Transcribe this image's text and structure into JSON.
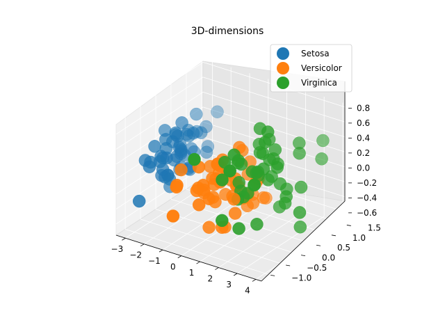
{
  "chart_data": {
    "type": "scatter",
    "title": "3D-dimensions",
    "xlabel": "",
    "ylabel": "",
    "zlabel": "",
    "x_ticks": [
      "−3",
      "−2",
      "−1",
      "0",
      "1",
      "2",
      "3",
      "4"
    ],
    "y_ticks": [
      "−1.0",
      "−0.5",
      "0.0",
      "0.5",
      "1.0",
      "1.5"
    ],
    "z_ticks": [
      "−0.6",
      "−0.4",
      "−0.2",
      "0.0",
      "0.2",
      "0.4",
      "0.6",
      "0.8"
    ],
    "xlim": [
      -3.5,
      4.3
    ],
    "ylim": [
      -1.3,
      1.55
    ],
    "zlim": [
      -0.75,
      0.85
    ],
    "legend_position": "top-right",
    "grid": true,
    "series": [
      {
        "name": "Setosa",
        "color": "#1f77b4",
        "points": [
          [
            -2.68,
            0.32,
            -0.03
          ],
          [
            -2.71,
            -0.18,
            -0.21
          ],
          [
            -2.89,
            -0.14,
            0.02
          ],
          [
            -2.75,
            -0.32,
            0.03
          ],
          [
            -2.73,
            0.33,
            0.09
          ],
          [
            -2.28,
            0.74,
            0.17
          ],
          [
            -2.82,
            -0.09,
            0.26
          ],
          [
            -2.63,
            0.16,
            -0.02
          ],
          [
            -2.89,
            -0.58,
            0.02
          ],
          [
            -2.67,
            -0.11,
            -0.2
          ],
          [
            -2.51,
            0.65,
            -0.08
          ],
          [
            -2.61,
            0.01,
            0.22
          ],
          [
            -2.79,
            -0.24,
            -0.18
          ],
          [
            -3.23,
            -0.51,
            0.06
          ],
          [
            -2.64,
            1.18,
            -0.16
          ],
          [
            -2.39,
            1.34,
            0.28
          ],
          [
            -2.62,
            0.81,
            0.14
          ],
          [
            -2.65,
            0.31,
            0.03
          ],
          [
            -2.2,
            0.87,
            -0.12
          ],
          [
            -2.59,
            0.51,
            0.24
          ],
          [
            -2.31,
            0.39,
            -0.23
          ],
          [
            -2.54,
            0.43,
            0.21
          ],
          [
            -3.22,
            0.13,
            0.29
          ],
          [
            -2.3,
            0.1,
            0.09
          ],
          [
            -2.36,
            -0.04,
            0.37
          ],
          [
            -2.51,
            -0.15,
            -0.23
          ],
          [
            -2.47,
            0.14,
            0.12
          ],
          [
            -2.56,
            0.37,
            -0.05
          ],
          [
            -2.64,
            0.31,
            -0.2
          ],
          [
            -2.63,
            -0.19,
            0.18
          ],
          [
            -2.59,
            -0.2,
            0.06
          ],
          [
            -2.41,
            0.41,
            -0.23
          ],
          [
            -2.65,
            0.81,
            0.37
          ],
          [
            -2.6,
            1.1,
            0.13
          ],
          [
            -2.67,
            -0.11,
            -0.2
          ],
          [
            -2.87,
            0.08,
            -0.42
          ],
          [
            -2.62,
            0.61,
            -0.27
          ],
          [
            -2.8,
            0.23,
            0.24
          ],
          [
            -2.98,
            -0.49,
            0.05
          ],
          [
            -2.59,
            0.23,
            -0.21
          ],
          [
            -2.77,
            0.27,
            0.21
          ],
          [
            -2.85,
            -0.94,
            -0.34
          ],
          [
            -3.0,
            -0.34,
            0.22
          ],
          [
            -2.41,
            0.19,
            0.44
          ],
          [
            -2.21,
            0.44,
            0.25
          ],
          [
            -2.71,
            -0.25,
            -0.09
          ],
          [
            -2.54,
            0.5,
            0.17
          ],
          [
            -2.84,
            -0.23,
            0.07
          ],
          [
            -2.54,
            0.58,
            -0.02
          ],
          [
            -2.7,
            0.11,
            -0.06
          ]
        ]
      },
      {
        "name": "Versicolor",
        "color": "#ff7f0e",
        "points": [
          [
            1.28,
            0.69,
            -0.41
          ],
          [
            0.93,
            0.32,
            -0.02
          ],
          [
            1.46,
            0.5,
            -0.34
          ],
          [
            0.18,
            -0.83,
            -0.18
          ],
          [
            1.09,
            0.07,
            -0.26
          ],
          [
            0.64,
            -0.42,
            0.05
          ],
          [
            1.1,
            0.28,
            0.17
          ],
          [
            -0.75,
            -1.0,
            0.03
          ],
          [
            1.04,
            0.23,
            -0.41
          ],
          [
            -0.01,
            -0.72,
            0.28
          ],
          [
            -0.51,
            -1.26,
            -0.27
          ],
          [
            0.51,
            -0.1,
            0.08
          ],
          [
            0.26,
            -0.55,
            -0.55
          ],
          [
            0.98,
            -0.12,
            0.04
          ],
          [
            -0.17,
            -0.25,
            0.15
          ],
          [
            0.93,
            0.47,
            -0.33
          ],
          [
            0.66,
            -0.35,
            0.33
          ],
          [
            0.23,
            -0.33,
            -0.27
          ],
          [
            0.94,
            -0.54,
            -0.5
          ],
          [
            0.04,
            -0.58,
            -0.06
          ],
          [
            1.12,
            -0.08,
            0.46
          ],
          [
            0.36,
            -0.07,
            -0.23
          ],
          [
            1.3,
            -0.33,
            -0.34
          ],
          [
            0.92,
            -0.18,
            -0.18
          ],
          [
            0.71,
            0.15,
            -0.15
          ],
          [
            0.9,
            0.33,
            -0.29
          ],
          [
            1.33,
            0.24,
            -0.35
          ],
          [
            1.56,
            0.27,
            -0.02
          ],
          [
            0.81,
            -0.16,
            0.02
          ],
          [
            -0.31,
            -0.37,
            -0.18
          ],
          [
            -0.07,
            -0.7,
            -0.01
          ],
          [
            -0.19,
            -0.68,
            -0.06
          ],
          [
            0.14,
            -0.31,
            -0.05
          ],
          [
            1.38,
            -0.42,
            -0.12
          ],
          [
            0.59,
            -0.48,
            0.3
          ],
          [
            0.81,
            0.2,
            0.32
          ],
          [
            1.22,
            0.41,
            -0.13
          ],
          [
            0.82,
            -0.37,
            -0.55
          ],
          [
            0.25,
            -0.27,
            0.22
          ],
          [
            0.16,
            -0.68,
            0.04
          ],
          [
            0.46,
            -0.67,
            -0.12
          ],
          [
            0.89,
            -0.03,
            -0.08
          ],
          [
            0.23,
            -0.4,
            -0.19
          ],
          [
            -0.71,
            -1.01,
            0.06
          ],
          [
            0.36,
            -0.5,
            0.1
          ],
          [
            0.33,
            -0.21,
            0.18
          ],
          [
            0.38,
            -0.29,
            0.12
          ],
          [
            0.64,
            0.11,
            -0.14
          ],
          [
            -0.91,
            -0.75,
            0.18
          ],
          [
            0.3,
            -0.35,
            0.05
          ]
        ]
      },
      {
        "name": "Virginica",
        "color": "#2ca02c",
        "points": [
          [
            2.53,
            -0.01,
            0.76
          ],
          [
            1.41,
            -0.57,
            0.3
          ],
          [
            2.62,
            0.34,
            -0.02
          ],
          [
            1.97,
            -0.18,
            0.23
          ],
          [
            2.35,
            -0.04,
            0.26
          ],
          [
            3.4,
            0.55,
            -0.06
          ],
          [
            0.52,
            -1.19,
            0.55
          ],
          [
            2.93,
            0.35,
            -0.17
          ],
          [
            2.32,
            -0.24,
            -0.43
          ],
          [
            2.92,
            0.78,
            0.43
          ],
          [
            1.66,
            0.24,
            0.46
          ],
          [
            1.8,
            -0.22,
            -0.06
          ],
          [
            2.17,
            0.22,
            0.03
          ],
          [
            1.34,
            -0.78,
            0.23
          ],
          [
            1.59,
            -0.54,
            0.52
          ],
          [
            1.9,
            0.12,
            0.4
          ],
          [
            1.95,
            0.04,
            0.12
          ],
          [
            3.49,
            1.17,
            0.16
          ],
          [
            3.8,
            0.26,
            -0.29
          ],
          [
            1.3,
            -0.76,
            -0.32
          ],
          [
            2.43,
            0.38,
            0.22
          ],
          [
            1.2,
            -0.61,
            0.41
          ],
          [
            3.5,
            0.46,
            -0.56
          ],
          [
            1.39,
            -0.2,
            -0.07
          ],
          [
            2.28,
            0.33,
            0.29
          ],
          [
            2.61,
            0.56,
            -0.15
          ],
          [
            1.26,
            -0.18,
            0.03
          ],
          [
            1.29,
            -0.12,
            0.26
          ],
          [
            2.12,
            -0.21,
            0.07
          ],
          [
            2.39,
            0.46,
            -0.38
          ],
          [
            2.84,
            0.37,
            -0.27
          ],
          [
            3.23,
            1.37,
            0.33
          ],
          [
            2.16,
            -0.22,
            0.08
          ],
          [
            1.44,
            -0.14,
            -0.16
          ],
          [
            1.78,
            -0.5,
            -0.46
          ],
          [
            3.08,
            0.69,
            0.33
          ],
          [
            2.14,
            0.14,
            0.55
          ],
          [
            1.9,
            0.05,
            0.16
          ],
          [
            1.17,
            -0.16,
            0.28
          ],
          [
            2.11,
            0.37,
            0.03
          ],
          [
            2.31,
            0.18,
            0.32
          ],
          [
            1.92,
            0.41,
            0.5
          ],
          [
            1.41,
            -0.57,
            0.3
          ],
          [
            2.56,
            0.28,
            0.21
          ],
          [
            2.42,
            0.3,
            0.43
          ],
          [
            1.94,
            0.19,
            0.37
          ],
          [
            1.53,
            -0.38,
            -0.12
          ],
          [
            1.76,
            0.08,
            0.13
          ],
          [
            1.9,
            0.12,
            0.72
          ],
          [
            1.39,
            -0.28,
            0.36
          ]
        ]
      }
    ]
  }
}
